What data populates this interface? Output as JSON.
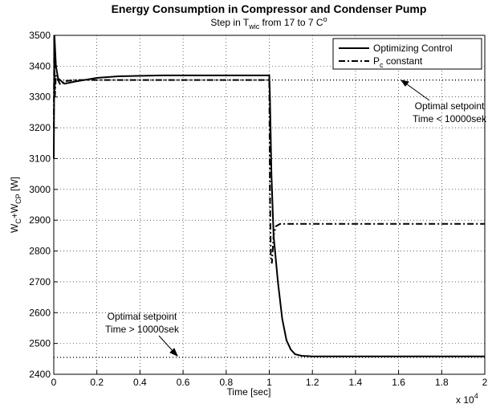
{
  "chart_data": {
    "type": "line",
    "title": "Energy Consumption in Compressor and Condenser Pump",
    "subtitle": [
      "Step in T",
      "wic",
      "  from 17 to 7 C",
      "o"
    ],
    "x_label": "Time [sec]",
    "x_multiplier": [
      "x 10",
      "4"
    ],
    "y_label": [
      "W",
      "C",
      "+W",
      "CP",
      " [W]"
    ],
    "xlim": [
      0,
      2
    ],
    "ylim": [
      2400,
      3500
    ],
    "xticks": [
      0,
      0.2,
      0.4,
      0.6,
      0.8,
      1,
      1.2,
      1.4,
      1.6,
      1.8,
      2
    ],
    "yticks": [
      2400,
      2500,
      2600,
      2700,
      2800,
      2900,
      3000,
      3100,
      3200,
      3300,
      3400,
      3500
    ],
    "grid": true,
    "legend": "upper right",
    "series": [
      {
        "name": [
          "Optimizing Control"
        ],
        "color": "#000000",
        "style": "solid",
        "x": [
          0,
          0.003,
          0.01,
          0.02,
          0.05,
          0.1,
          0.2,
          0.3,
          0.5,
          1.0,
          1.003,
          1.01,
          1.02,
          1.04,
          1.06,
          1.08,
          1.1,
          1.12,
          1.15,
          1.2,
          1.5,
          2.0
        ],
        "values": [
          3100,
          3500,
          3400,
          3360,
          3343,
          3350,
          3362,
          3367,
          3370,
          3370,
          3300,
          3050,
          2850,
          2700,
          2580,
          2510,
          2480,
          2465,
          2460,
          2458,
          2458,
          2458
        ]
      },
      {
        "name": [
          "P",
          "c",
          " constant"
        ],
        "color": "#000000",
        "style": "dashdot",
        "x": [
          0,
          0.002,
          0.005,
          0.01,
          0.03,
          0.06,
          0.1,
          0.3,
          1.0,
          1.003,
          1.007,
          1.012,
          1.02,
          1.03,
          1.05,
          1.1,
          2.0
        ],
        "values": [
          3200,
          3480,
          3300,
          3370,
          3340,
          3352,
          3355,
          3355,
          3355,
          3000,
          2780,
          2760,
          2850,
          2880,
          2888,
          2888,
          2888
        ]
      }
    ],
    "annotations": [
      {
        "lines": [
          "Optimal setpoint",
          "Time < 10000sek"
        ],
        "value": 3355
      },
      {
        "lines": [
          "Optimal setpoint",
          "Time > 10000sek"
        ],
        "value": 2455
      }
    ]
  }
}
